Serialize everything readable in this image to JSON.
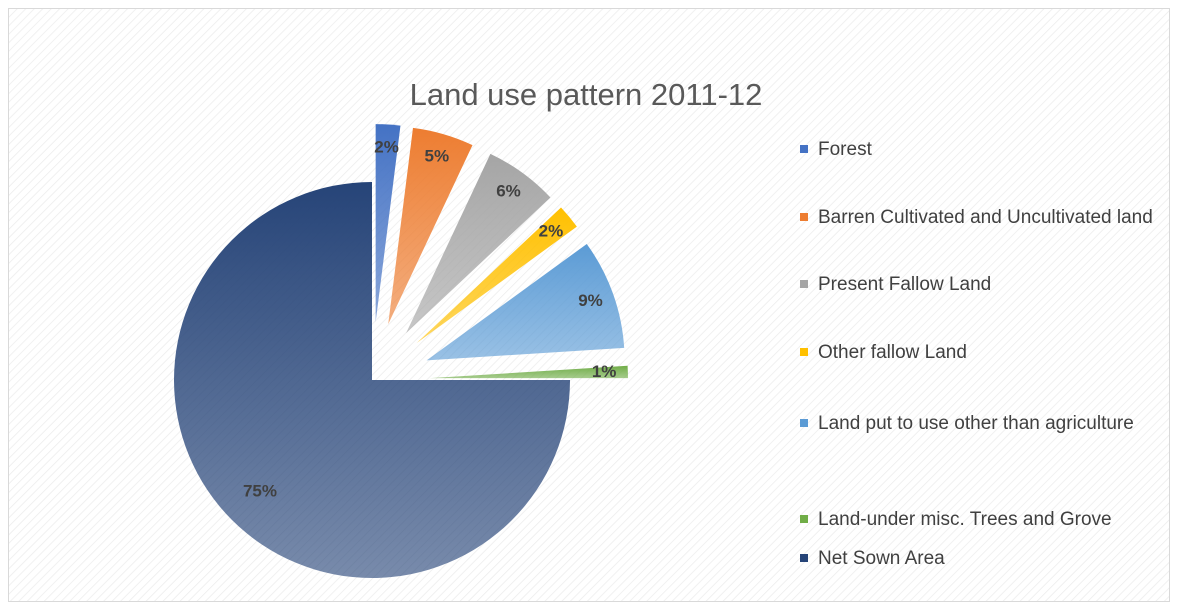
{
  "chart_data": {
    "type": "pie",
    "title": "Land use pattern 2011-12",
    "categories": [
      "Forest",
      "Barren Cultivated and Uncultivated land",
      "Present Fallow Land",
      "Other fallow Land",
      "Land put to use other than agriculture",
      "Land-under misc. Trees and Grove",
      "Net Sown Area"
    ],
    "values": [
      2,
      5,
      6,
      2,
      9,
      1,
      75
    ],
    "value_labels": [
      "2%",
      "5%",
      "6%",
      "2%",
      "9%",
      "1%",
      "75%"
    ],
    "colors": [
      "#4472c4",
      "#ed7d31",
      "#a5a5a5",
      "#ffc000",
      "#5b9bd5",
      "#70ad47",
      "#264478"
    ],
    "legend": "right"
  }
}
